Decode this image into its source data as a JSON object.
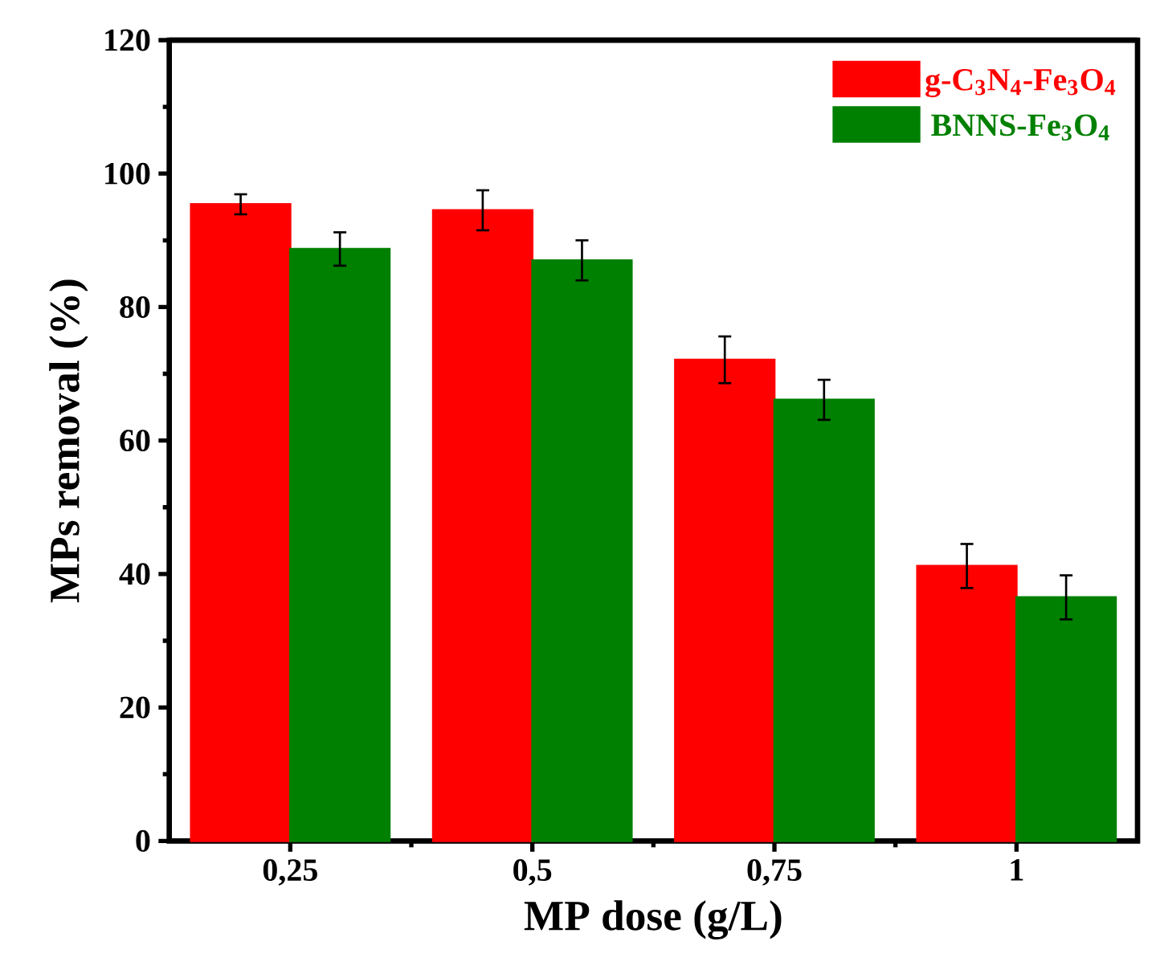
{
  "chart_data": {
    "type": "bar",
    "xlabel": "MP dose (g/L)",
    "ylabel": "MPs removal (%)",
    "categories": [
      "0,25",
      "0,5",
      "0,75",
      "1"
    ],
    "series": [
      {
        "name": "g-C$_{3}$N$_{4}$-Fe$_{3}$O$_{4}$",
        "color": "#ff0000",
        "values": [
          95.4,
          94.5,
          72.1,
          41.2
        ],
        "errors": [
          1.5,
          3,
          3.5,
          3.3
        ]
      },
      {
        "name": "BNNS-Fe$_{3}$O$_{4}$",
        "color": "#008000",
        "values": [
          88.7,
          87,
          66.1,
          36.5
        ],
        "errors": [
          2.5,
          3,
          3,
          3.3
        ]
      }
    ],
    "ylim": [
      0,
      120
    ],
    "yticks": [
      0,
      20,
      40,
      60,
      80,
      100,
      120
    ],
    "legend": "top right",
    "grid": false
  }
}
